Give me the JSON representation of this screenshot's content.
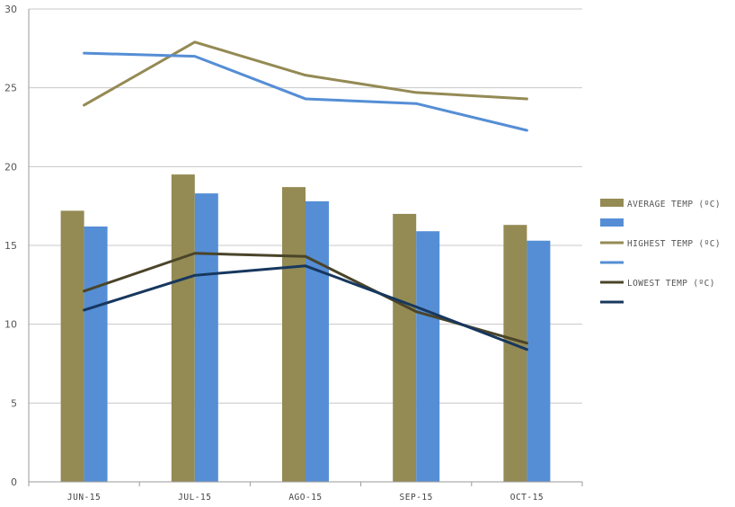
{
  "chart_data": {
    "type": "bar+line",
    "categories": [
      "JUN-15",
      "JUL-15",
      "AGO-15",
      "SEP-15",
      "OCT-15"
    ],
    "ylim": [
      0,
      30
    ],
    "yticks": [
      0,
      5,
      10,
      15,
      20,
      25,
      30
    ],
    "grid": true,
    "legend_position": "right",
    "bar_series": [
      {
        "name": "AVERAGE TEMP (ºC)",
        "color": "#948a54",
        "values": [
          17.2,
          19.5,
          18.7,
          17.0,
          16.3
        ]
      },
      {
        "name": "",
        "color": "#558ed5",
        "values": [
          16.2,
          18.3,
          17.8,
          15.9,
          15.3
        ]
      }
    ],
    "line_series": [
      {
        "name": "HIGHEST TEMP (ºC)",
        "color": "#948a54",
        "values": [
          23.9,
          27.9,
          25.8,
          24.7,
          24.3
        ]
      },
      {
        "name": "",
        "color": "#558ed5",
        "values": [
          27.2,
          27.0,
          24.3,
          24.0,
          22.3
        ]
      },
      {
        "name": "LOWEST TEMP (ºC)",
        "color": "#4a4429",
        "values": [
          12.1,
          14.5,
          14.3,
          10.8,
          8.8
        ]
      },
      {
        "name": "",
        "color": "#17375e",
        "values": [
          10.9,
          13.1,
          13.7,
          11.1,
          8.4
        ]
      }
    ]
  }
}
